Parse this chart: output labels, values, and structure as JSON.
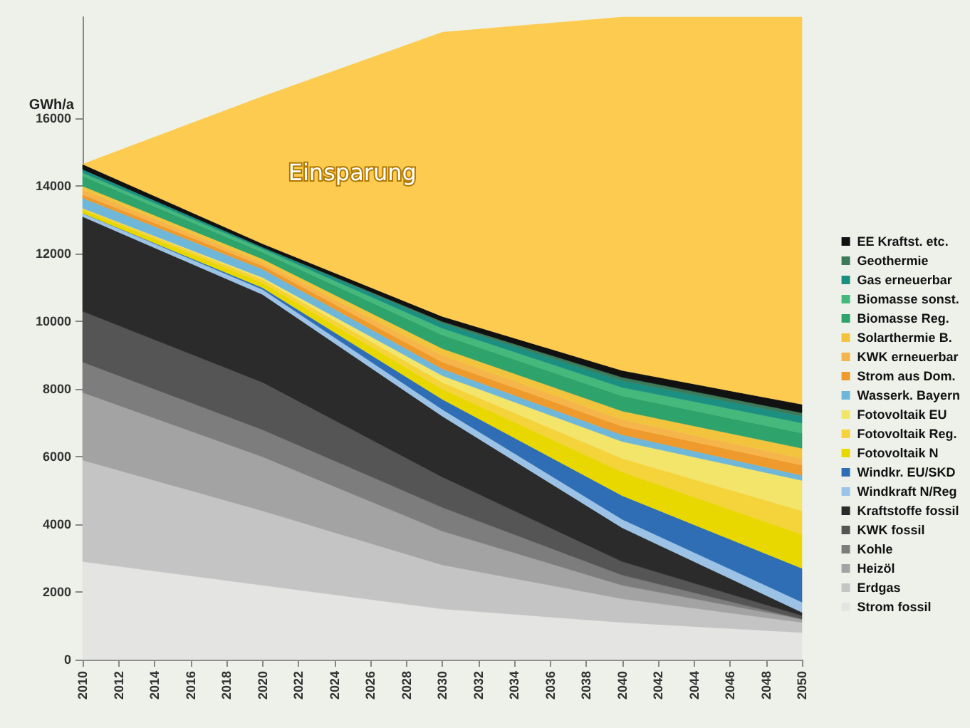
{
  "chart_data": {
    "type": "area",
    "stacked": true,
    "ylabel": "GWh/a",
    "x": [
      2010,
      2020,
      2030,
      2040,
      2050
    ],
    "xlim": [
      2010,
      2050
    ],
    "xticks": [
      2010,
      2012,
      2014,
      2016,
      2018,
      2020,
      2022,
      2024,
      2026,
      2028,
      2030,
      2032,
      2034,
      2036,
      2038,
      2040,
      2042,
      2044,
      2046,
      2048,
      2050
    ],
    "ylim": [
      0,
      19000
    ],
    "yticks": [
      0,
      2000,
      4000,
      6000,
      8000,
      10000,
      12000,
      14000,
      16000
    ],
    "grid": false,
    "legend": "right",
    "series": [
      {
        "name": "Strom fossil",
        "color": "#e4e4e2",
        "values": [
          2900,
          2200,
          1500,
          1100,
          800
        ]
      },
      {
        "name": "Erdgas",
        "color": "#c4c4c4",
        "values": [
          3000,
          2200,
          1300,
          700,
          300
        ]
      },
      {
        "name": "Heizöl",
        "color": "#a3a3a3",
        "values": [
          2000,
          1600,
          1000,
          400,
          100
        ]
      },
      {
        "name": "Kohle",
        "color": "#7d7d7d",
        "values": [
          900,
          800,
          700,
          300,
          0
        ]
      },
      {
        "name": "KWK fossil",
        "color": "#555555",
        "values": [
          1500,
          1400,
          900,
          400,
          100
        ]
      },
      {
        "name": "Kraftstoffe fossil",
        "color": "#2b2b2b",
        "values": [
          2800,
          2600,
          1800,
          1000,
          100
        ]
      },
      {
        "name": "Windkraft N/Reg",
        "color": "#9cc3e6",
        "values": [
          100,
          150,
          200,
          250,
          300
        ]
      },
      {
        "name": "Windkr. EU/SKD",
        "color": "#2f6db5",
        "values": [
          0,
          50,
          300,
          700,
          1000
        ]
      },
      {
        "name": "Fotovoltaik N",
        "color": "#e8d800",
        "values": [
          100,
          150,
          300,
          700,
          1000
        ]
      },
      {
        "name": "Fotovoltaik Reg.",
        "color": "#f5d33a",
        "values": [
          50,
          100,
          200,
          400,
          700
        ]
      },
      {
        "name": "Fotovoltaik EU",
        "color": "#f3e46a",
        "values": [
          0,
          50,
          200,
          500,
          900
        ]
      },
      {
        "name": "Wasserk. Bayern",
        "color": "#6fb7d8",
        "values": [
          300,
          250,
          200,
          200,
          150
        ]
      },
      {
        "name": "Strom aus Dom.",
        "color": "#ee9a2c",
        "values": [
          100,
          100,
          200,
          250,
          300
        ]
      },
      {
        "name": "KWK erneuerbar",
        "color": "#f6b54a",
        "values": [
          150,
          100,
          200,
          200,
          200
        ]
      },
      {
        "name": "Solarthermie B.",
        "color": "#f2c43e",
        "values": [
          100,
          100,
          200,
          250,
          300
        ]
      },
      {
        "name": "Biomasse Reg.",
        "color": "#2ea36b",
        "values": [
          300,
          200,
          400,
          450,
          450
        ]
      },
      {
        "name": "Biomasse sonst.",
        "color": "#45b87c",
        "values": [
          100,
          100,
          200,
          250,
          300
        ]
      },
      {
        "name": "Gas erneuerbar",
        "color": "#1b8f80",
        "values": [
          100,
          50,
          150,
          200,
          200
        ]
      },
      {
        "name": "Geothermie",
        "color": "#3d7a5a",
        "values": [
          0,
          0,
          50,
          100,
          100
        ]
      },
      {
        "name": "EE Kraftst. etc.",
        "color": "#111111",
        "values": [
          150,
          100,
          150,
          200,
          250
        ]
      },
      {
        "name": "Einsparung",
        "color": "#fccb50",
        "values": [
          0,
          4350,
          8400,
          10450,
          11450
        ]
      }
    ]
  }
}
